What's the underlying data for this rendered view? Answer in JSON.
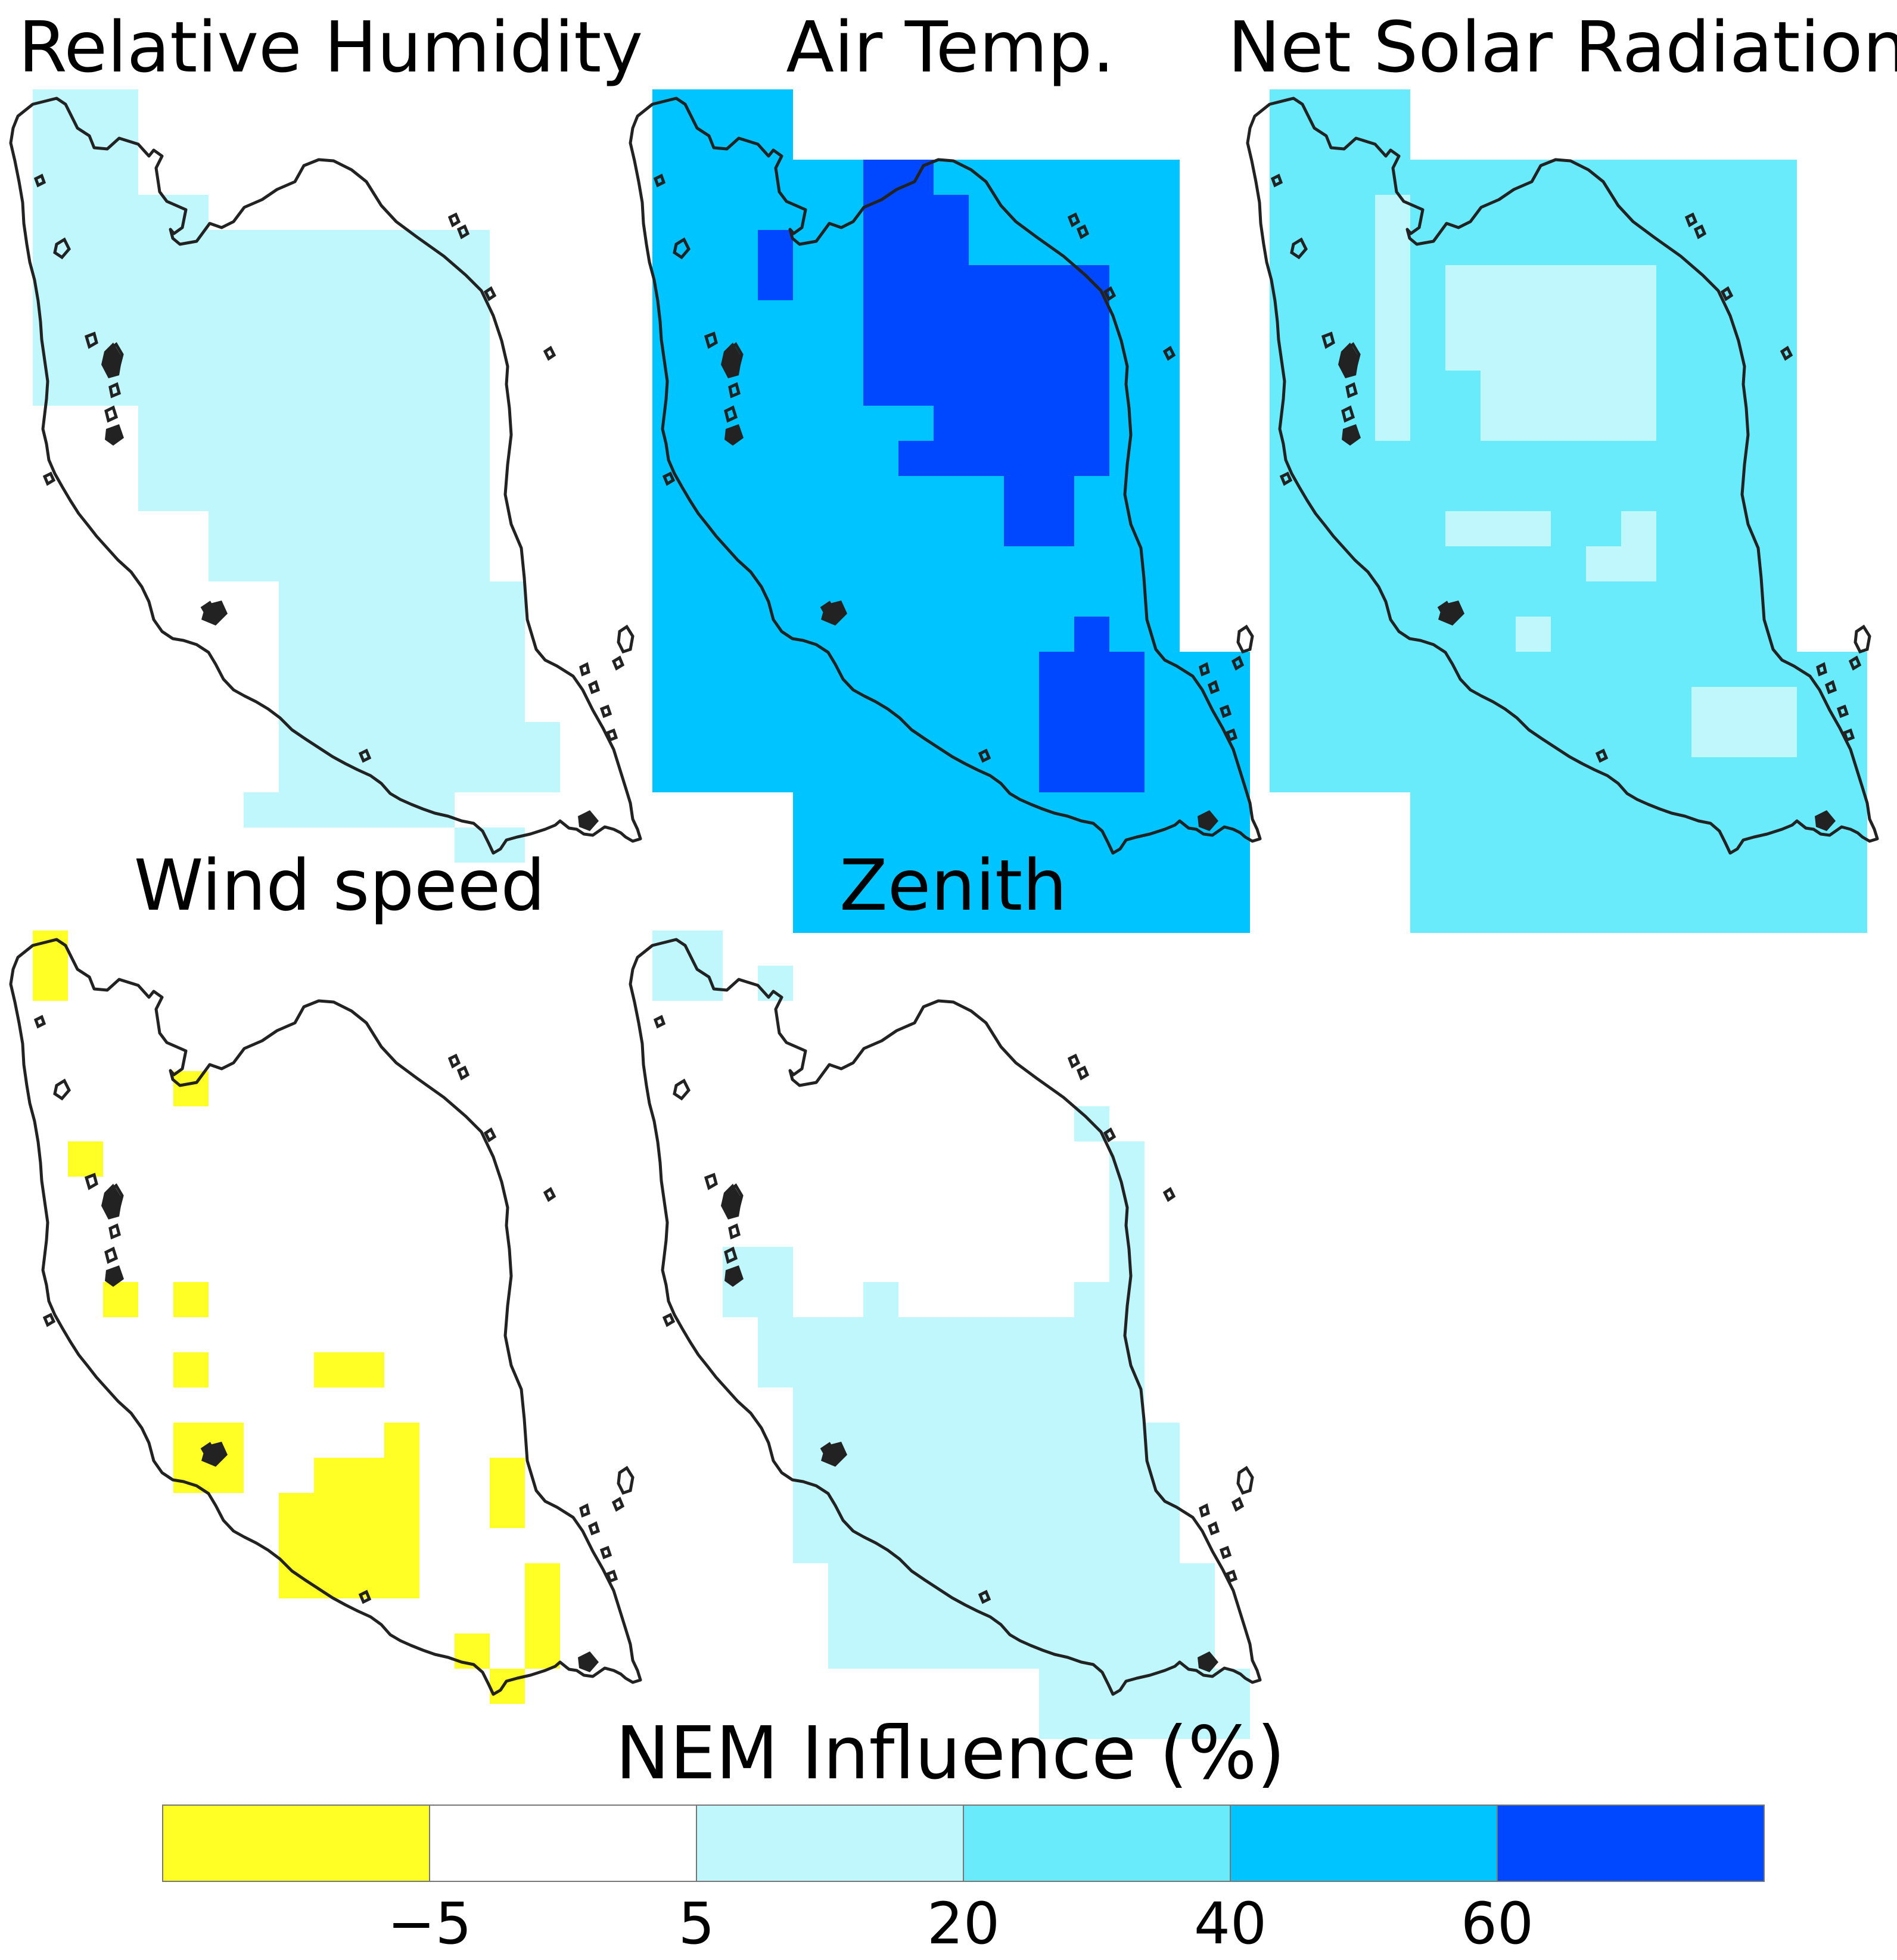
{
  "colors": {
    "lt_neg5": "#ffff26",
    "neg5_5": "#ffffff",
    "5_20": "#bff7fc",
    "20_40": "#6aebfb",
    "40_60": "#00c4ff",
    "gt60": "#0048ff",
    "coastline": "#222222"
  },
  "panels": [
    {
      "id": "relative-humidity",
      "title": "Relative Humidity",
      "cells": [
        {
          "class": "5_20",
          "col": 0,
          "row": 0,
          "w": 3,
          "h": 9
        },
        {
          "class": "5_20",
          "col": 3,
          "row": 3,
          "w": 2,
          "h": 9
        },
        {
          "class": "5_20",
          "col": 5,
          "row": 4,
          "w": 8,
          "h": 10
        },
        {
          "class": "5_20",
          "col": 7,
          "row": 14,
          "w": 7,
          "h": 6
        },
        {
          "class": "5_20",
          "col": 6,
          "row": 20,
          "w": 6,
          "h": 1
        },
        {
          "class": "5_20",
          "col": 11,
          "row": 18,
          "w": 4,
          "h": 2
        },
        {
          "class": "5_20",
          "col": 12,
          "row": 21,
          "w": 2,
          "h": 1
        }
      ]
    },
    {
      "id": "air-temp",
      "title": "Air Temp.",
      "cells": [
        {
          "class": "40_60",
          "col": 0,
          "row": 0,
          "w": 4,
          "h": 20
        },
        {
          "class": "40_60",
          "col": 4,
          "row": 2,
          "w": 11,
          "h": 22
        },
        {
          "class": "40_60",
          "col": 13,
          "row": 16,
          "w": 4,
          "h": 8
        },
        {
          "class": "gt60",
          "col": 3,
          "row": 4,
          "w": 1,
          "h": 2
        },
        {
          "class": "gt60",
          "col": 6,
          "row": 2,
          "w": 2,
          "h": 1
        },
        {
          "class": "gt60",
          "col": 6,
          "row": 3,
          "w": 3,
          "h": 2
        },
        {
          "class": "gt60",
          "col": 6,
          "row": 5,
          "w": 7,
          "h": 4
        },
        {
          "class": "gt60",
          "col": 8,
          "row": 9,
          "w": 5,
          "h": 2
        },
        {
          "class": "gt60",
          "col": 7,
          "row": 10,
          "w": 3,
          "h": 1
        },
        {
          "class": "gt60",
          "col": 10,
          "row": 11,
          "w": 2,
          "h": 2
        },
        {
          "class": "gt60",
          "col": 11,
          "row": 16,
          "w": 3,
          "h": 4
        },
        {
          "class": "gt60",
          "col": 12,
          "row": 15,
          "w": 1,
          "h": 1
        }
      ]
    },
    {
      "id": "net-solar-radiation",
      "title": "Net Solar Radiation",
      "cells": [
        {
          "class": "20_40",
          "col": 0,
          "row": 0,
          "w": 4,
          "h": 20
        },
        {
          "class": "20_40",
          "col": 4,
          "row": 2,
          "w": 11,
          "h": 22
        },
        {
          "class": "20_40",
          "col": 13,
          "row": 16,
          "w": 4,
          "h": 8
        },
        {
          "class": "5_20",
          "col": 3,
          "row": 3,
          "w": 1,
          "h": 7
        },
        {
          "class": "5_20",
          "col": 5,
          "row": 5,
          "w": 6,
          "h": 3
        },
        {
          "class": "5_20",
          "col": 6,
          "row": 8,
          "w": 5,
          "h": 2
        },
        {
          "class": "5_20",
          "col": 5,
          "row": 12,
          "w": 3,
          "h": 1
        },
        {
          "class": "5_20",
          "col": 10,
          "row": 12,
          "w": 1,
          "h": 2
        },
        {
          "class": "5_20",
          "col": 9,
          "row": 13,
          "w": 1,
          "h": 1
        },
        {
          "class": "5_20",
          "col": 7,
          "row": 15,
          "w": 1,
          "h": 1
        },
        {
          "class": "5_20",
          "col": 12,
          "row": 17,
          "w": 3,
          "h": 2
        }
      ]
    },
    {
      "id": "wind-speed",
      "title": "Wind speed",
      "cells": [
        {
          "class": "lt_neg5",
          "col": 0,
          "row": 0,
          "w": 1,
          "h": 2
        },
        {
          "class": "lt_neg5",
          "col": 4,
          "row": 4,
          "w": 1,
          "h": 1
        },
        {
          "class": "lt_neg5",
          "col": 1,
          "row": 6,
          "w": 1,
          "h": 1
        },
        {
          "class": "lt_neg5",
          "col": 2,
          "row": 10,
          "w": 1,
          "h": 1
        },
        {
          "class": "lt_neg5",
          "col": 4,
          "row": 10,
          "w": 1,
          "h": 1
        },
        {
          "class": "lt_neg5",
          "col": 4,
          "row": 12,
          "w": 1,
          "h": 1
        },
        {
          "class": "lt_neg5",
          "col": 8,
          "row": 12,
          "w": 2,
          "h": 1
        },
        {
          "class": "lt_neg5",
          "col": 4,
          "row": 14,
          "w": 2,
          "h": 2
        },
        {
          "class": "lt_neg5",
          "col": 10,
          "row": 14,
          "w": 1,
          "h": 5
        },
        {
          "class": "lt_neg5",
          "col": 8,
          "row": 15,
          "w": 2,
          "h": 4
        },
        {
          "class": "lt_neg5",
          "col": 7,
          "row": 16,
          "w": 1,
          "h": 3
        },
        {
          "class": "lt_neg5",
          "col": 13,
          "row": 15,
          "w": 1,
          "h": 2
        },
        {
          "class": "lt_neg5",
          "col": 14,
          "row": 18,
          "w": 1,
          "h": 3
        },
        {
          "class": "lt_neg5",
          "col": 12,
          "row": 20,
          "w": 1,
          "h": 1
        },
        {
          "class": "lt_neg5",
          "col": 13,
          "row": 21,
          "w": 1,
          "h": 1
        }
      ]
    },
    {
      "id": "zenith",
      "title": "Zenith",
      "cells": [
        {
          "class": "5_20",
          "col": 0,
          "row": 0,
          "w": 2,
          "h": 2
        },
        {
          "class": "5_20",
          "col": 3,
          "row": 1,
          "w": 1,
          "h": 1
        },
        {
          "class": "5_20",
          "col": 12,
          "row": 5,
          "w": 1,
          "h": 1
        },
        {
          "class": "5_20",
          "col": 13,
          "row": 6,
          "w": 1,
          "h": 4
        },
        {
          "class": "5_20",
          "col": 2,
          "row": 9,
          "w": 2,
          "h": 2
        },
        {
          "class": "5_20",
          "col": 6,
          "row": 10,
          "w": 1,
          "h": 1
        },
        {
          "class": "5_20",
          "col": 12,
          "row": 10,
          "w": 2,
          "h": 1
        },
        {
          "class": "5_20",
          "col": 3,
          "row": 11,
          "w": 11,
          "h": 2
        },
        {
          "class": "5_20",
          "col": 4,
          "row": 13,
          "w": 10,
          "h": 1
        },
        {
          "class": "5_20",
          "col": 4,
          "row": 14,
          "w": 11,
          "h": 4
        },
        {
          "class": "5_20",
          "col": 5,
          "row": 18,
          "w": 11,
          "h": 3
        },
        {
          "class": "5_20",
          "col": 11,
          "row": 21,
          "w": 6,
          "h": 2
        }
      ]
    }
  ],
  "legend": {
    "title": "NEM Influence (%)",
    "bins": [
      {
        "class": "lt_neg5",
        "label": "< -5"
      },
      {
        "class": "neg5_5",
        "label": "-5 to 5"
      },
      {
        "class": "5_20",
        "label": "5 to 20"
      },
      {
        "class": "20_40",
        "label": "20 to 40"
      },
      {
        "class": "40_60",
        "label": "40 to 60"
      },
      {
        "class": "gt60",
        "label": "> 60"
      }
    ],
    "tick_labels": [
      "−5",
      "5",
      "20",
      "40",
      "60"
    ]
  }
}
